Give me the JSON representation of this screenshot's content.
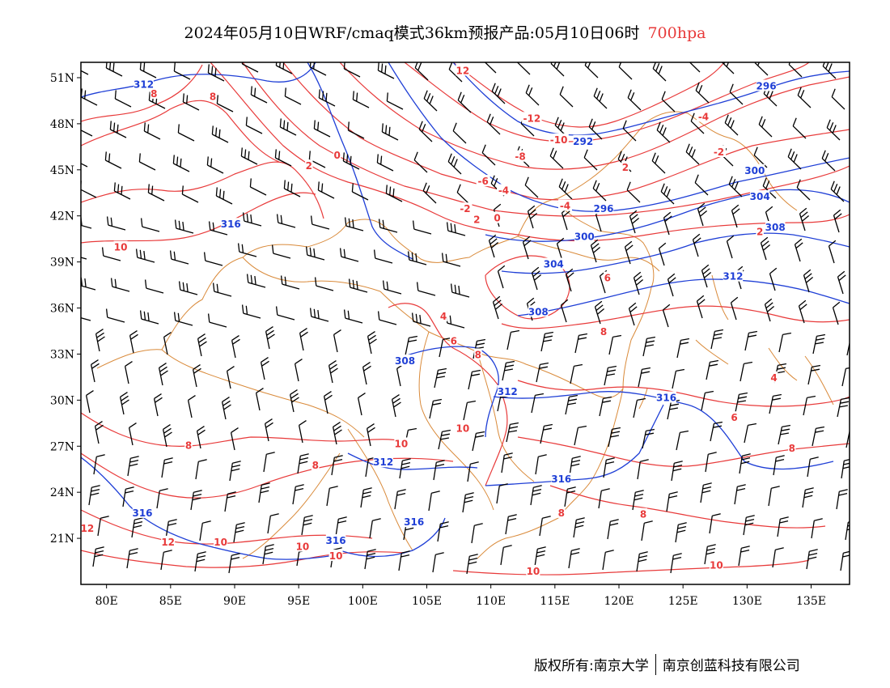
{
  "title": {
    "main": "2024年05月10日WRF/cmaq模式36km预报产品:05月10日06时",
    "level": "700hpa"
  },
  "footer": {
    "copyright": "版权所有:南京大学",
    "company": "南京创蓝科技有限公司"
  },
  "colors": {
    "temperature": "#e83a3a",
    "geopotential": "#1f3fd6",
    "boundary": "#d98a3a",
    "wind": "#000000"
  },
  "chart_data": {
    "type": "map",
    "x_ticks": [
      "80E",
      "85E",
      "90E",
      "95E",
      "100E",
      "105E",
      "110E",
      "115E",
      "120E",
      "125E",
      "130E",
      "135E"
    ],
    "y_ticks": [
      "51N",
      "48N",
      "45N",
      "42N",
      "39N",
      "36N",
      "33N",
      "30N",
      "27N",
      "24N",
      "21N"
    ],
    "lon_range": [
      78,
      138
    ],
    "lat_range": [
      18,
      52
    ],
    "temperature_labels": [
      {
        "text": "12",
        "lon": 107.8,
        "lat": 51.5
      },
      {
        "text": "8",
        "lon": 83.7,
        "lat": 50.0
      },
      {
        "text": "8",
        "lon": 88.3,
        "lat": 49.8
      },
      {
        "text": "-12",
        "lon": 113.2,
        "lat": 48.4
      },
      {
        "text": "-4",
        "lon": 126.6,
        "lat": 48.5
      },
      {
        "text": "-10",
        "lon": 115.3,
        "lat": 47.0
      },
      {
        "text": "-2",
        "lon": 127.8,
        "lat": 46.2
      },
      {
        "text": "0",
        "lon": 98.0,
        "lat": 46.0
      },
      {
        "text": "2",
        "lon": 95.8,
        "lat": 45.3
      },
      {
        "text": "-8",
        "lon": 112.3,
        "lat": 45.9
      },
      {
        "text": "2",
        "lon": 120.5,
        "lat": 45.2
      },
      {
        "text": "-6",
        "lon": 109.4,
        "lat": 44.3
      },
      {
        "text": "-4",
        "lon": 111.0,
        "lat": 43.7
      },
      {
        "text": "-2",
        "lon": 108.0,
        "lat": 42.5
      },
      {
        "text": "2",
        "lon": 108.9,
        "lat": 41.8
      },
      {
        "text": "0",
        "lon": 110.5,
        "lat": 41.9
      },
      {
        "text": "-4",
        "lon": 115.8,
        "lat": 42.7
      },
      {
        "text": "2",
        "lon": 131.0,
        "lat": 41.0
      },
      {
        "text": "10",
        "lon": 81.1,
        "lat": 40.0
      },
      {
        "text": "6",
        "lon": 119.1,
        "lat": 38.0
      },
      {
        "text": "4",
        "lon": 106.3,
        "lat": 35.5
      },
      {
        "text": "6",
        "lon": 107.1,
        "lat": 33.9
      },
      {
        "text": "8",
        "lon": 109.0,
        "lat": 33.0
      },
      {
        "text": "8",
        "lon": 118.8,
        "lat": 34.5
      },
      {
        "text": "8",
        "lon": 111.0,
        "lat": 30.6
      },
      {
        "text": "4",
        "lon": 132.1,
        "lat": 31.5
      },
      {
        "text": "6",
        "lon": 129.0,
        "lat": 28.9
      },
      {
        "text": "10",
        "lon": 107.8,
        "lat": 28.2
      },
      {
        "text": "10",
        "lon": 103.0,
        "lat": 27.2
      },
      {
        "text": "8",
        "lon": 86.4,
        "lat": 27.1
      },
      {
        "text": "8",
        "lon": 96.3,
        "lat": 25.8
      },
      {
        "text": "8",
        "lon": 133.5,
        "lat": 26.9
      },
      {
        "text": "8",
        "lon": 115.5,
        "lat": 22.7
      },
      {
        "text": "8",
        "lon": 121.9,
        "lat": 22.6
      },
      {
        "text": "12",
        "lon": 78.5,
        "lat": 21.7
      },
      {
        "text": "12",
        "lon": 84.8,
        "lat": 20.8
      },
      {
        "text": "10",
        "lon": 88.9,
        "lat": 20.8
      },
      {
        "text": "10",
        "lon": 95.3,
        "lat": 20.5
      },
      {
        "text": "10",
        "lon": 97.9,
        "lat": 19.9
      },
      {
        "text": "10",
        "lon": 113.3,
        "lat": 18.9
      },
      {
        "text": "10",
        "lon": 127.6,
        "lat": 19.3
      }
    ],
    "geopotential_labels": [
      {
        "text": "312",
        "lon": 82.9,
        "lat": 50.6
      },
      {
        "text": "296",
        "lon": 131.5,
        "lat": 50.5
      },
      {
        "text": "292",
        "lon": 117.2,
        "lat": 46.9
      },
      {
        "text": "300",
        "lon": 130.6,
        "lat": 45.0
      },
      {
        "text": "304",
        "lon": 131.0,
        "lat": 43.3
      },
      {
        "text": "296",
        "lon": 118.8,
        "lat": 42.5
      },
      {
        "text": "316",
        "lon": 89.7,
        "lat": 41.5
      },
      {
        "text": "308",
        "lon": 132.2,
        "lat": 41.3
      },
      {
        "text": "300",
        "lon": 117.3,
        "lat": 40.7
      },
      {
        "text": "304",
        "lon": 114.9,
        "lat": 38.9
      },
      {
        "text": "312",
        "lon": 128.9,
        "lat": 38.1
      },
      {
        "text": "308",
        "lon": 113.7,
        "lat": 35.8
      },
      {
        "text": "308",
        "lon": 103.3,
        "lat": 32.6
      },
      {
        "text": "312",
        "lon": 111.3,
        "lat": 30.6
      },
      {
        "text": "316",
        "lon": 123.7,
        "lat": 30.2
      },
      {
        "text": "312",
        "lon": 101.6,
        "lat": 26.0
      },
      {
        "text": "316",
        "lon": 115.5,
        "lat": 24.9
      },
      {
        "text": "316",
        "lon": 82.8,
        "lat": 22.7
      },
      {
        "text": "316",
        "lon": 104.0,
        "lat": 22.1
      },
      {
        "text": "316",
        "lon": 97.9,
        "lat": 20.9
      }
    ]
  }
}
